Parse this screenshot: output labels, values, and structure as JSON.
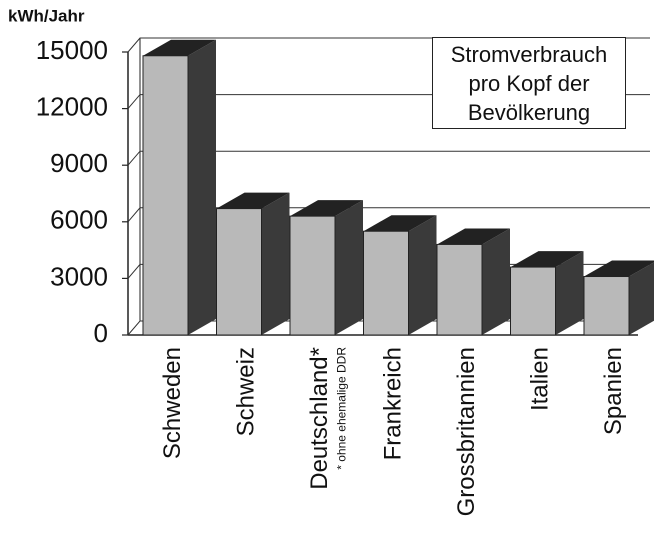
{
  "chart_data": {
    "type": "bar3d",
    "title": "Stromverbrauch pro Kopf der Bevölkerung",
    "y_axis_label": "kWh/Jahr",
    "categories": [
      "Schweden",
      "Schweiz",
      "Deutschland*",
      "Frankreich",
      "Grossbritannien",
      "Italien",
      "Spanien"
    ],
    "values": [
      14800,
      6700,
      6300,
      5500,
      4800,
      3600,
      3100
    ],
    "annotation": "* ohne ehemalige DDR",
    "ylim": [
      0,
      15000
    ],
    "yticks": [
      0,
      3000,
      6000,
      9000,
      12000,
      15000
    ],
    "grid": true,
    "colors": {
      "front": "#b9b9b9",
      "side": "#3a3a3a",
      "top": "#222222"
    }
  }
}
